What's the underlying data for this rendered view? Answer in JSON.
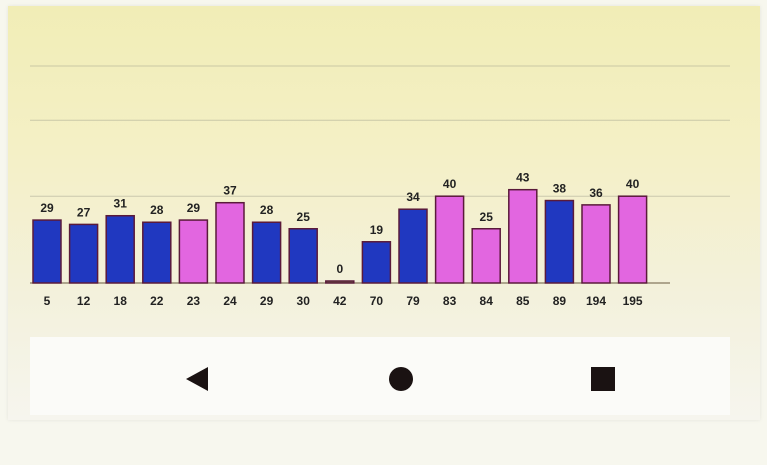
{
  "colors": {
    "blue": "#2038c0",
    "magenta": "#e266e0",
    "outline": "#5a1a3a",
    "background": "#f3efc8",
    "gridline": "#9a9a88",
    "nav_icon": "#1a1212"
  },
  "chart_data": {
    "type": "bar",
    "categories": [
      "5",
      "12",
      "18",
      "22",
      "23",
      "24",
      "29",
      "30",
      "42",
      "70",
      "79",
      "83",
      "84",
      "85",
      "89",
      "194",
      "195"
    ],
    "values": [
      29,
      27,
      31,
      28,
      29,
      37,
      28,
      25,
      0,
      19,
      34,
      40,
      25,
      43,
      38,
      36,
      40
    ],
    "bar_colors": [
      "blue",
      "blue",
      "blue",
      "blue",
      "magenta",
      "magenta",
      "blue",
      "blue",
      "blue",
      "blue",
      "blue",
      "magenta",
      "magenta",
      "magenta",
      "blue",
      "magenta",
      "magenta"
    ],
    "title": "",
    "xlabel": "",
    "ylabel": "",
    "ylim": [
      0,
      100
    ],
    "grid": true,
    "gridlines": [
      40,
      75,
      100
    ]
  },
  "nav": {
    "back_icon": "back-triangle-icon",
    "home_icon": "home-circle-icon",
    "recents_icon": "recents-square-icon"
  }
}
